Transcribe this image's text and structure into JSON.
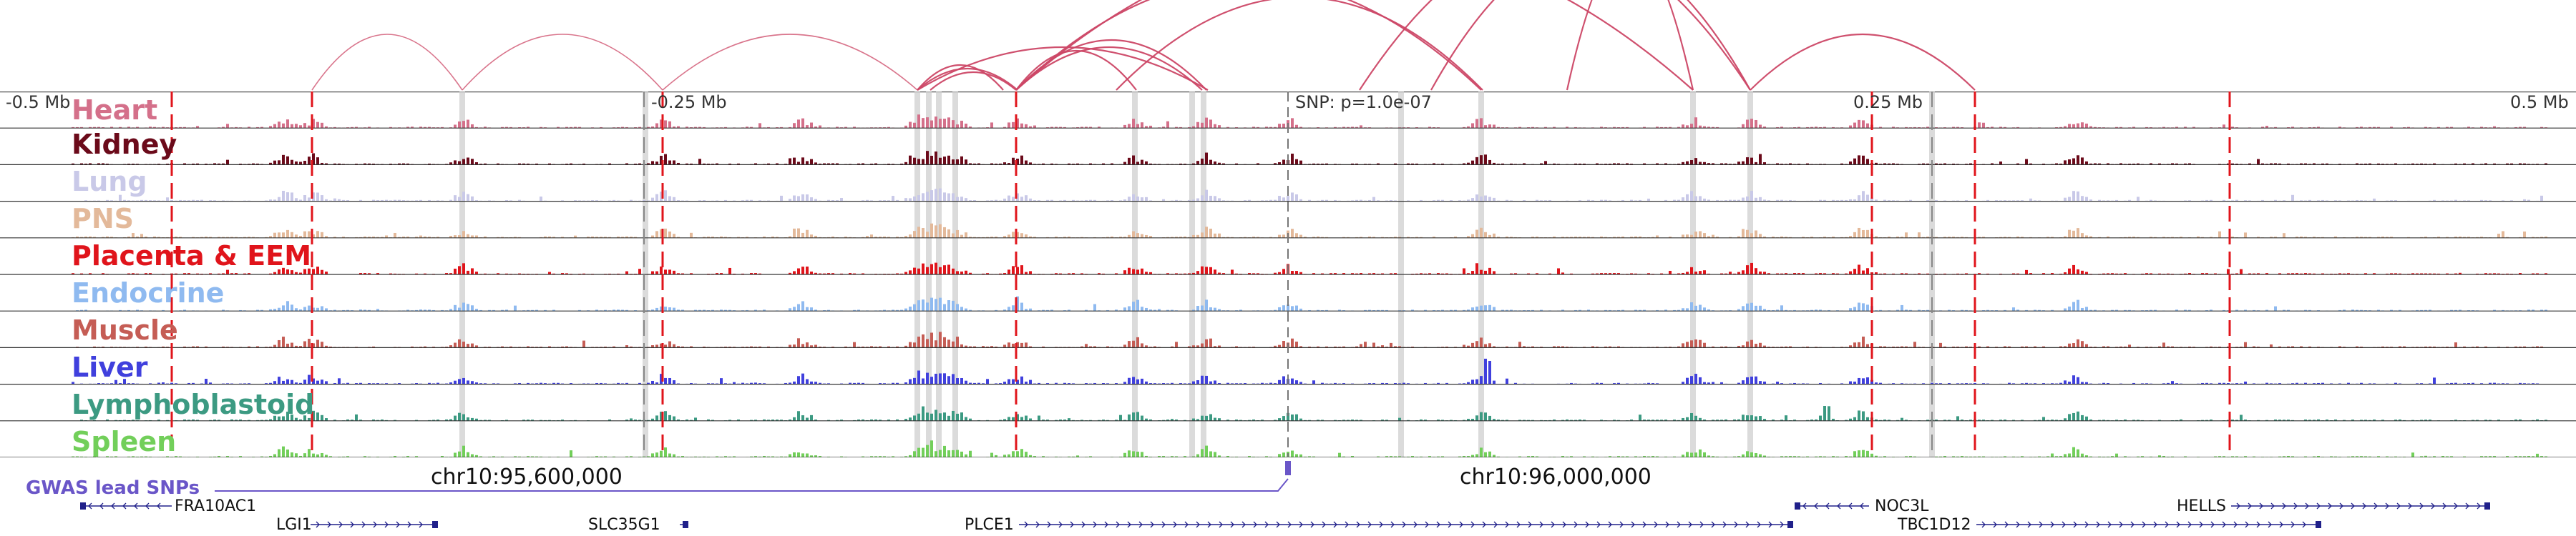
{
  "axis_labels": [
    "-0.5 Mb",
    "-0.25 Mb",
    "0.25 Mb",
    "0.5 Mb"
  ],
  "snp_label": "SNP: p=1.0e-07",
  "tracks": [
    {
      "name": "Heart",
      "color": "#d4708a"
    },
    {
      "name": "Kidney",
      "color": "#6b0a1a"
    },
    {
      "name": "Lung",
      "color": "#c9c9e8"
    },
    {
      "name": "PNS",
      "color": "#e3b99a"
    },
    {
      "name": "Placenta & EEM",
      "color": "#e0141b"
    },
    {
      "name": "Endocrine",
      "color": "#8fbaf0"
    },
    {
      "name": "Muscle",
      "color": "#c55d55"
    },
    {
      "name": "Liver",
      "color": "#4040dd"
    },
    {
      "name": "Lymphoblastoid",
      "color": "#3c9a82"
    },
    {
      "name": "Spleen",
      "color": "#72cf5a"
    }
  ],
  "gwas": {
    "label": "GWAS lead SNPs",
    "color": "#6a56c8"
  },
  "chrom_labels": [
    "chr10:95,600,000",
    "chr10:96,000,000"
  ],
  "genes": [
    "FRA10AC1",
    "LGI1",
    "SLC35G1",
    "PLCE1",
    "NOC3L",
    "TBC1D12",
    "HELLS"
  ],
  "colors": {
    "arc": "#cc4766",
    "red_dash": "#e0141b",
    "gray_band": "#cccccc",
    "gene": "#20208a"
  }
}
